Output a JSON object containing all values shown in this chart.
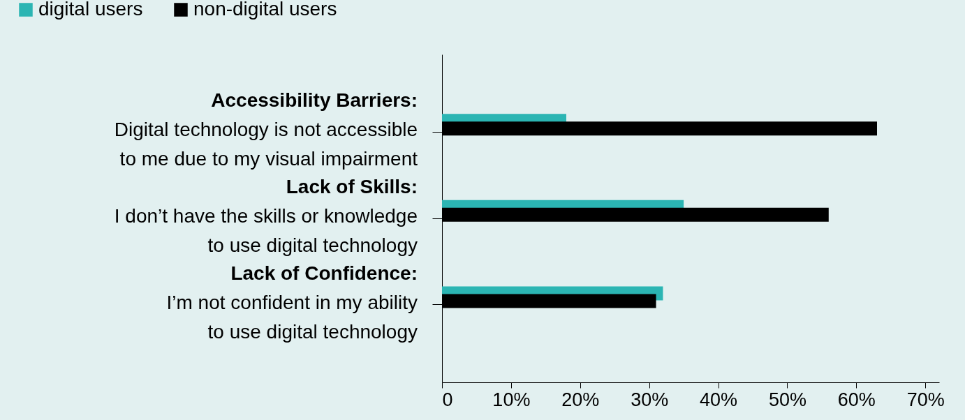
{
  "chart_data": {
    "type": "bar",
    "orientation": "horizontal",
    "categories": [
      "Accessibility Barriers:\nDigital technology is not accessible\nto me due to  my visual impairment",
      "Lack of Skills:\nI don’t have the skills or knowledge\nto use digital technology",
      "Lack of Confidence:\nI’m not confident in my ability\nto use digital technology"
    ],
    "series": [
      {
        "name": "digital users",
        "color": "#2bb5b3",
        "values": [
          18,
          35,
          32
        ]
      },
      {
        "name": "non-digital users",
        "color": "#000000",
        "values": [
          63,
          56,
          31
        ]
      }
    ],
    "xlim": [
      0,
      72
    ],
    "xticks": [
      0,
      {
        "value": 10,
        "label": "10%"
      },
      {
        "value": 20,
        "label": "20%"
      },
      {
        "value": 30,
        "label": "30%"
      },
      {
        "value": 40,
        "label": "40%"
      },
      {
        "value": 50,
        "label": "50%"
      },
      {
        "value": 60,
        "label": "60%"
      },
      {
        "value": 70,
        "label": "70%"
      }
    ],
    "grid": false,
    "legend": "top left"
  }
}
